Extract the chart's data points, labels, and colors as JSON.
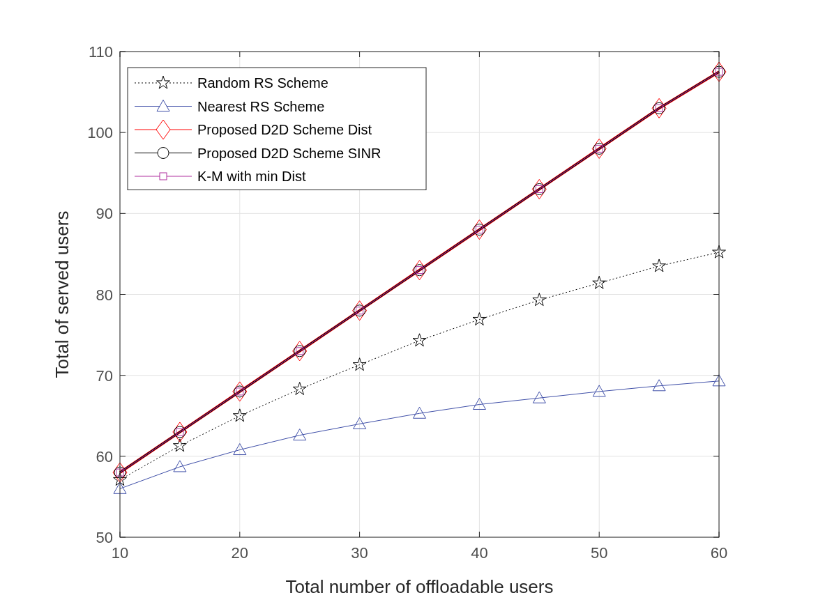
{
  "chart_data": {
    "type": "line",
    "xlabel": "Total number of offloadable users",
    "ylabel": "Total of served users",
    "x": [
      10,
      15,
      20,
      25,
      30,
      35,
      40,
      45,
      50,
      55,
      60
    ],
    "series": [
      {
        "name": "Random RS Scheme",
        "color": "#000000",
        "marker": "star",
        "line_style": "dotted",
        "values": [
          57.1,
          61.3,
          65.0,
          68.3,
          71.3,
          74.3,
          76.9,
          79.3,
          81.4,
          83.5,
          85.2
        ]
      },
      {
        "name": "Nearest RS Scheme",
        "color": "#3f4fa8",
        "marker": "triangle",
        "line_style": "solid",
        "values": [
          56.0,
          58.7,
          60.8,
          62.6,
          64.0,
          65.3,
          66.4,
          67.2,
          68.0,
          68.7,
          69.3
        ]
      },
      {
        "name": "Proposed D2D Scheme Dist",
        "color": "#ff0000",
        "marker": "diamond",
        "line_style": "solid",
        "values": [
          58,
          63,
          68,
          73,
          78,
          83,
          88,
          93,
          98,
          103,
          107.5
        ]
      },
      {
        "name": "Proposed D2D Scheme SINR",
        "color": "#000000",
        "marker": "circle",
        "line_style": "solid",
        "values": [
          58,
          63,
          68,
          73,
          78,
          83,
          88,
          93,
          98,
          103,
          107.5
        ]
      },
      {
        "name": "K-M with min Dist",
        "color": "#b0309f",
        "marker": "square",
        "line_style": "solid",
        "values": [
          58,
          63,
          68,
          73,
          78,
          83,
          88,
          93,
          98,
          103,
          107.5
        ]
      }
    ],
    "xlim": [
      10,
      60
    ],
    "xticks": [
      10,
      20,
      30,
      40,
      50,
      60
    ],
    "ylim": [
      50,
      110
    ],
    "yticks": [
      50,
      60,
      70,
      80,
      90,
      100,
      110
    ],
    "grid": true,
    "legend": "top left"
  }
}
